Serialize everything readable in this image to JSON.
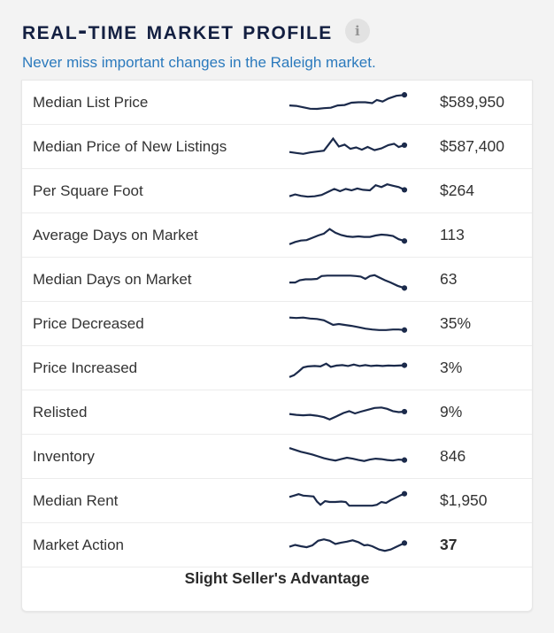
{
  "header": {
    "title": "Real-Time Market Profile",
    "info_icon": "i",
    "subtitle": "Never miss important changes in the Raleigh market."
  },
  "colors": {
    "title_navy": "#131f41",
    "sparkline_navy": "#1b2a4b",
    "subtitle_blue": "#2b7abd",
    "row_text": "#333333",
    "page_background": "#f3f3f3"
  },
  "market_profile": {
    "rows": [
      {
        "label": "Median List Price",
        "value": "$589,950",
        "bold": false,
        "points": [
          [
            0,
            62
          ],
          [
            6,
            64
          ],
          [
            12,
            70
          ],
          [
            18,
            76
          ],
          [
            24,
            77
          ],
          [
            30,
            74
          ],
          [
            36,
            72
          ],
          [
            42,
            62
          ],
          [
            48,
            60
          ],
          [
            54,
            50
          ],
          [
            60,
            48
          ],
          [
            66,
            48
          ],
          [
            72,
            52
          ],
          [
            76,
            38
          ],
          [
            81,
            45
          ],
          [
            86,
            32
          ],
          [
            93,
            20
          ],
          [
            100,
            16
          ]
        ]
      },
      {
        "label": "Median Price of New Listings",
        "value": "$587,400",
        "bold": false,
        "points": [
          [
            0,
            72
          ],
          [
            6,
            76
          ],
          [
            12,
            80
          ],
          [
            18,
            74
          ],
          [
            24,
            70
          ],
          [
            30,
            66
          ],
          [
            34,
            40
          ],
          [
            38,
            14
          ],
          [
            43,
            48
          ],
          [
            48,
            40
          ],
          [
            53,
            58
          ],
          [
            58,
            52
          ],
          [
            63,
            62
          ],
          [
            68,
            50
          ],
          [
            74,
            64
          ],
          [
            80,
            56
          ],
          [
            86,
            42
          ],
          [
            91,
            36
          ],
          [
            95,
            50
          ],
          [
            100,
            42
          ]
        ]
      },
      {
        "label": "Per Square Foot",
        "value": "$264",
        "bold": false,
        "points": [
          [
            0,
            72
          ],
          [
            5,
            64
          ],
          [
            10,
            70
          ],
          [
            16,
            74
          ],
          [
            22,
            72
          ],
          [
            28,
            66
          ],
          [
            34,
            52
          ],
          [
            39,
            40
          ],
          [
            44,
            50
          ],
          [
            49,
            40
          ],
          [
            54,
            46
          ],
          [
            59,
            38
          ],
          [
            64,
            44
          ],
          [
            70,
            46
          ],
          [
            75,
            24
          ],
          [
            80,
            32
          ],
          [
            85,
            20
          ],
          [
            90,
            26
          ],
          [
            95,
            32
          ],
          [
            100,
            44
          ]
        ]
      },
      {
        "label": "Average Days on Market",
        "value": "113",
        "bold": false,
        "points": [
          [
            0,
            88
          ],
          [
            5,
            78
          ],
          [
            10,
            72
          ],
          [
            15,
            70
          ],
          [
            20,
            60
          ],
          [
            25,
            50
          ],
          [
            30,
            42
          ],
          [
            35,
            22
          ],
          [
            40,
            38
          ],
          [
            45,
            48
          ],
          [
            50,
            54
          ],
          [
            55,
            56
          ],
          [
            60,
            54
          ],
          [
            65,
            56
          ],
          [
            70,
            56
          ],
          [
            75,
            50
          ],
          [
            80,
            46
          ],
          [
            85,
            48
          ],
          [
            90,
            52
          ],
          [
            95,
            66
          ],
          [
            100,
            74
          ]
        ]
      },
      {
        "label": "Median Days on Market",
        "value": "63",
        "bold": false,
        "points": [
          [
            0,
            62
          ],
          [
            5,
            62
          ],
          [
            9,
            52
          ],
          [
            14,
            48
          ],
          [
            19,
            48
          ],
          [
            24,
            46
          ],
          [
            28,
            34
          ],
          [
            33,
            32
          ],
          [
            38,
            32
          ],
          [
            43,
            32
          ],
          [
            48,
            32
          ],
          [
            53,
            32
          ],
          [
            58,
            34
          ],
          [
            62,
            36
          ],
          [
            66,
            46
          ],
          [
            70,
            34
          ],
          [
            74,
            30
          ],
          [
            78,
            40
          ],
          [
            83,
            52
          ],
          [
            88,
            62
          ],
          [
            94,
            76
          ],
          [
            100,
            86
          ]
        ]
      },
      {
        "label": "Price Decreased",
        "value": "35%",
        "bold": false,
        "points": [
          [
            0,
            22
          ],
          [
            6,
            24
          ],
          [
            12,
            22
          ],
          [
            18,
            26
          ],
          [
            24,
            28
          ],
          [
            30,
            34
          ],
          [
            34,
            44
          ],
          [
            38,
            54
          ],
          [
            43,
            50
          ],
          [
            48,
            54
          ],
          [
            54,
            58
          ],
          [
            60,
            64
          ],
          [
            66,
            70
          ],
          [
            72,
            74
          ],
          [
            78,
            76
          ],
          [
            84,
            76
          ],
          [
            90,
            74
          ],
          [
            95,
            74
          ],
          [
            100,
            76
          ]
        ]
      },
      {
        "label": "Price Increased",
        "value": "3%",
        "bold": false,
        "points": [
          [
            0,
            88
          ],
          [
            4,
            80
          ],
          [
            8,
            64
          ],
          [
            12,
            46
          ],
          [
            16,
            42
          ],
          [
            22,
            40
          ],
          [
            27,
            42
          ],
          [
            32,
            30
          ],
          [
            36,
            44
          ],
          [
            41,
            38
          ],
          [
            46,
            36
          ],
          [
            51,
            40
          ],
          [
            56,
            34
          ],
          [
            61,
            40
          ],
          [
            66,
            36
          ],
          [
            71,
            40
          ],
          [
            76,
            38
          ],
          [
            81,
            40
          ],
          [
            86,
            38
          ],
          [
            91,
            39
          ],
          [
            95,
            38
          ],
          [
            100,
            37
          ]
        ]
      },
      {
        "label": "Relisted",
        "value": "9%",
        "bold": false,
        "points": [
          [
            0,
            56
          ],
          [
            6,
            60
          ],
          [
            12,
            62
          ],
          [
            18,
            60
          ],
          [
            24,
            64
          ],
          [
            30,
            70
          ],
          [
            35,
            80
          ],
          [
            41,
            66
          ],
          [
            47,
            52
          ],
          [
            52,
            44
          ],
          [
            57,
            54
          ],
          [
            62,
            46
          ],
          [
            68,
            38
          ],
          [
            74,
            30
          ],
          [
            80,
            28
          ],
          [
            85,
            34
          ],
          [
            90,
            44
          ],
          [
            95,
            48
          ],
          [
            100,
            46
          ]
        ]
      },
      {
        "label": "Inventory",
        "value": "846",
        "bold": false,
        "points": [
          [
            0,
            12
          ],
          [
            5,
            20
          ],
          [
            10,
            28
          ],
          [
            15,
            34
          ],
          [
            20,
            40
          ],
          [
            25,
            48
          ],
          [
            30,
            56
          ],
          [
            35,
            62
          ],
          [
            40,
            66
          ],
          [
            45,
            60
          ],
          [
            50,
            54
          ],
          [
            55,
            58
          ],
          [
            60,
            64
          ],
          [
            65,
            68
          ],
          [
            70,
            62
          ],
          [
            75,
            58
          ],
          [
            80,
            60
          ],
          [
            85,
            64
          ],
          [
            90,
            66
          ],
          [
            95,
            62
          ],
          [
            100,
            64
          ]
        ]
      },
      {
        "label": "Median Rent",
        "value": "$1,950",
        "bold": false,
        "points": [
          [
            0,
            32
          ],
          [
            4,
            26
          ],
          [
            8,
            20
          ],
          [
            12,
            26
          ],
          [
            17,
            28
          ],
          [
            21,
            30
          ],
          [
            24,
            52
          ],
          [
            27,
            66
          ],
          [
            31,
            50
          ],
          [
            35,
            54
          ],
          [
            40,
            54
          ],
          [
            45,
            52
          ],
          [
            49,
            54
          ],
          [
            52,
            70
          ],
          [
            57,
            70
          ],
          [
            62,
            70
          ],
          [
            67,
            70
          ],
          [
            72,
            70
          ],
          [
            76,
            66
          ],
          [
            80,
            54
          ],
          [
            84,
            58
          ],
          [
            88,
            46
          ],
          [
            93,
            34
          ],
          [
            97,
            24
          ],
          [
            100,
            18
          ]
        ]
      },
      {
        "label": "Market Action",
        "value": "37",
        "bold": true,
        "points": [
          [
            0,
            56
          ],
          [
            5,
            48
          ],
          [
            10,
            54
          ],
          [
            15,
            58
          ],
          [
            20,
            50
          ],
          [
            25,
            30
          ],
          [
            30,
            24
          ],
          [
            35,
            30
          ],
          [
            40,
            44
          ],
          [
            45,
            38
          ],
          [
            50,
            34
          ],
          [
            55,
            28
          ],
          [
            60,
            36
          ],
          [
            65,
            50
          ],
          [
            68,
            48
          ],
          [
            72,
            54
          ],
          [
            78,
            68
          ],
          [
            83,
            74
          ],
          [
            88,
            68
          ],
          [
            93,
            56
          ],
          [
            100,
            40
          ]
        ]
      }
    ],
    "summary": "Slight Seller's Advantage"
  }
}
